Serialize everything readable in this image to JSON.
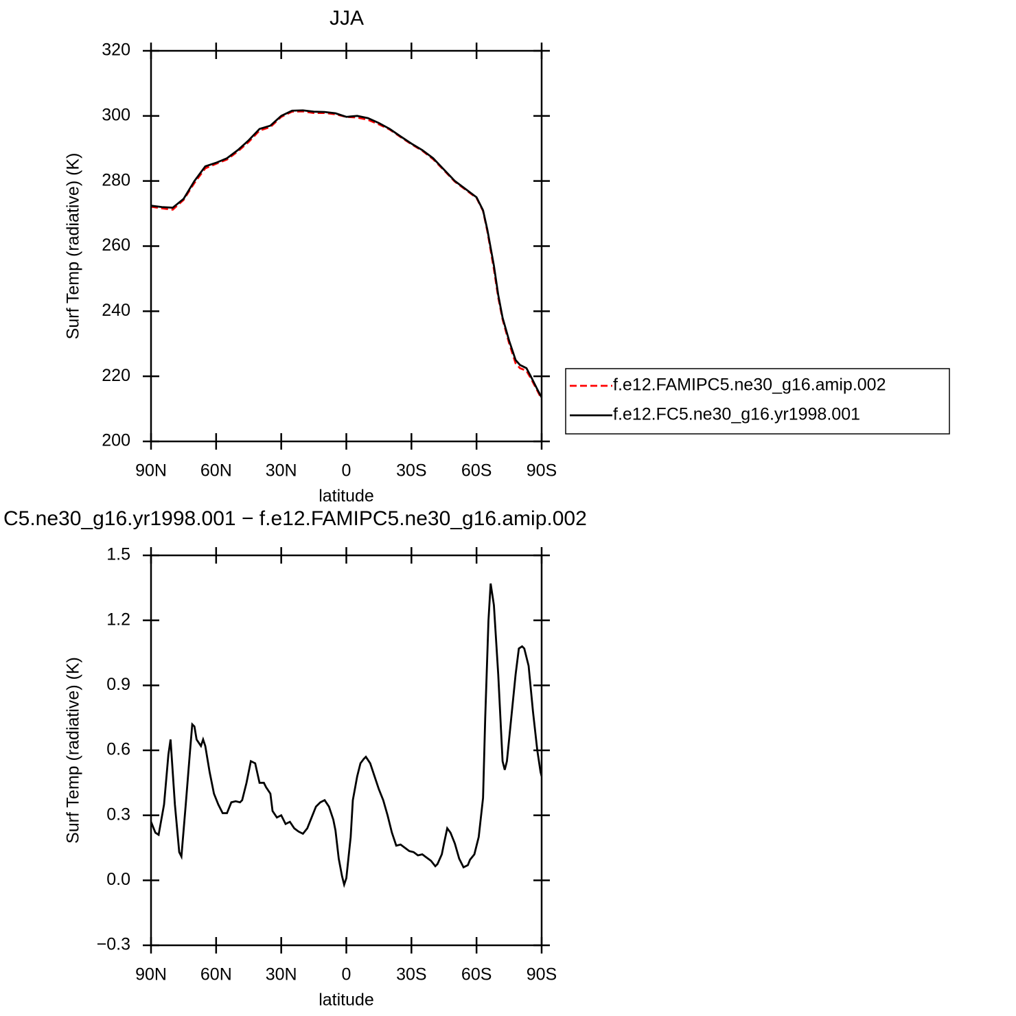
{
  "chart_data": [
    {
      "type": "line",
      "title": "JJA",
      "ylabel": "Surf Temp (radiative) (K)",
      "xlabel": "latitude",
      "x": [
        90,
        85,
        80,
        75,
        70,
        65,
        60,
        55,
        50,
        45,
        40,
        35,
        30,
        25,
        20,
        15,
        10,
        5,
        0,
        -5,
        -10,
        -15,
        -20,
        -25,
        -30,
        -35,
        -40,
        -45,
        -50,
        -55,
        -60,
        -63,
        -65,
        -68,
        -70,
        -72,
        -75,
        -78,
        -80,
        -83,
        -85,
        -88,
        -90
      ],
      "series": [
        {
          "name": "f.e12.FAMIPC5.ne30_g16.amip.002",
          "color": "#ff0000",
          "dashed": true,
          "values": [
            272.1,
            271.6,
            271.2,
            274.2,
            279.4,
            283.9,
            285.3,
            286.6,
            289.1,
            292.0,
            295.5,
            296.6,
            299.7,
            301.3,
            301.4,
            300.9,
            300.9,
            300.5,
            299.7,
            299.5,
            298.8,
            297.4,
            295.8,
            293.5,
            291.3,
            289.3,
            286.7,
            283.3,
            279.8,
            277.3,
            274.8,
            270.8,
            264.5,
            252.9,
            244.2,
            237.5,
            230.2,
            224.0,
            222.5,
            221.7,
            219.4,
            215.6,
            213.0
          ]
        },
        {
          "name": "f.e12.FC5.ne30_g16.yr1998.001",
          "color": "#000000",
          "dashed": false,
          "values": [
            272.4,
            272.0,
            271.8,
            274.5,
            280.0,
            284.5,
            285.6,
            287.0,
            289.5,
            292.5,
            296.0,
            297.0,
            300.0,
            301.6,
            301.7,
            301.3,
            301.2,
            300.8,
            299.7,
            300.0,
            299.3,
            297.8,
            296.0,
            293.7,
            291.5,
            289.5,
            287.0,
            283.5,
            280.0,
            277.5,
            275.0,
            271.0,
            265.0,
            254.0,
            245.0,
            238.0,
            231.0,
            225.0,
            223.5,
            222.5,
            220.0,
            216.0,
            213.5
          ]
        }
      ],
      "xlim": [
        90,
        -90
      ],
      "xticks": [
        {
          "value": 90,
          "label": "90N"
        },
        {
          "value": 60,
          "label": "60N"
        },
        {
          "value": 30,
          "label": "30N"
        },
        0,
        {
          "value": -30,
          "label": "30S"
        },
        {
          "value": -60,
          "label": "60S"
        },
        {
          "value": -90,
          "label": "90S"
        }
      ],
      "ylim": [
        200,
        320
      ],
      "yticks": [
        200,
        220,
        240,
        260,
        280,
        300,
        320
      ],
      "legend": "right"
    },
    {
      "type": "line",
      "title": "C5.ne30_g16.yr1998.001 − f.e12.FAMIPC5.ne30_g16.amip.002",
      "ylabel": "Surf Temp (radiative) (K)",
      "xlabel": "latitude",
      "x": [
        90,
        88,
        86.5,
        84,
        82,
        81,
        79,
        77,
        76,
        74,
        72,
        71,
        70,
        69,
        67,
        66,
        65,
        63,
        61,
        59,
        57,
        55,
        53,
        51,
        49,
        48,
        46,
        44,
        42,
        40,
        38,
        37,
        35,
        34,
        32,
        30,
        28,
        26,
        24,
        22,
        20,
        18,
        16,
        14,
        12,
        10,
        8,
        6,
        5,
        3.5,
        2,
        1,
        0,
        -2,
        -3,
        -5,
        -6.5,
        -8,
        -9,
        -11,
        -13,
        -15,
        -17,
        -19,
        -21,
        -23,
        -25,
        -27,
        -29,
        -31,
        -33,
        -35,
        -37,
        -39,
        -41,
        -42,
        -44,
        -45,
        -46.5,
        -48,
        -50,
        -52,
        -54,
        -56,
        -57,
        -59,
        -61,
        -63,
        -64,
        -65.5,
        -66.5,
        -68,
        -70,
        -72,
        -73,
        -74,
        -76.5,
        -78,
        -79.5,
        -81,
        -82,
        -84,
        -86,
        -88,
        -89.5,
        -90
      ],
      "values": [
        0.27,
        0.22,
        0.21,
        0.35,
        0.58,
        0.65,
        0.35,
        0.13,
        0.11,
        0.35,
        0.6,
        0.72,
        0.71,
        0.65,
        0.62,
        0.65,
        0.62,
        0.5,
        0.4,
        0.35,
        0.31,
        0.31,
        0.36,
        0.365,
        0.36,
        0.37,
        0.45,
        0.55,
        0.54,
        0.45,
        0.45,
        0.43,
        0.4,
        0.32,
        0.29,
        0.3,
        0.26,
        0.27,
        0.24,
        0.225,
        0.215,
        0.24,
        0.29,
        0.34,
        0.36,
        0.37,
        0.34,
        0.28,
        0.23,
        0.1,
        0.02,
        -0.02,
        0.01,
        0.2,
        0.37,
        0.48,
        0.54,
        0.56,
        0.57,
        0.54,
        0.48,
        0.42,
        0.37,
        0.3,
        0.22,
        0.16,
        0.165,
        0.15,
        0.135,
        0.13,
        0.115,
        0.12,
        0.105,
        0.09,
        0.065,
        0.075,
        0.12,
        0.17,
        0.24,
        0.22,
        0.17,
        0.1,
        0.06,
        0.07,
        0.095,
        0.12,
        0.2,
        0.38,
        0.75,
        1.2,
        1.37,
        1.27,
        0.95,
        0.55,
        0.51,
        0.55,
        0.8,
        0.95,
        1.07,
        1.08,
        1.07,
        0.99,
        0.78,
        0.6,
        0.5,
        0.48
      ],
      "color": "#000000",
      "xlim": [
        90,
        -90
      ],
      "xticks": [
        {
          "value": 90,
          "label": "90N"
        },
        {
          "value": 60,
          "label": "60N"
        },
        {
          "value": 30,
          "label": "30N"
        },
        0,
        {
          "value": -30,
          "label": "30S"
        },
        {
          "value": -60,
          "label": "60S"
        },
        {
          "value": -90,
          "label": "90S"
        }
      ],
      "ylim": [
        -0.3,
        1.5
      ],
      "yticks": [
        {
          "value": -0.3,
          "label": "−0.3"
        },
        {
          "value": 0,
          "label": "0.0"
        },
        0.3,
        0.6,
        0.9,
        1.2,
        1.5
      ]
    }
  ]
}
